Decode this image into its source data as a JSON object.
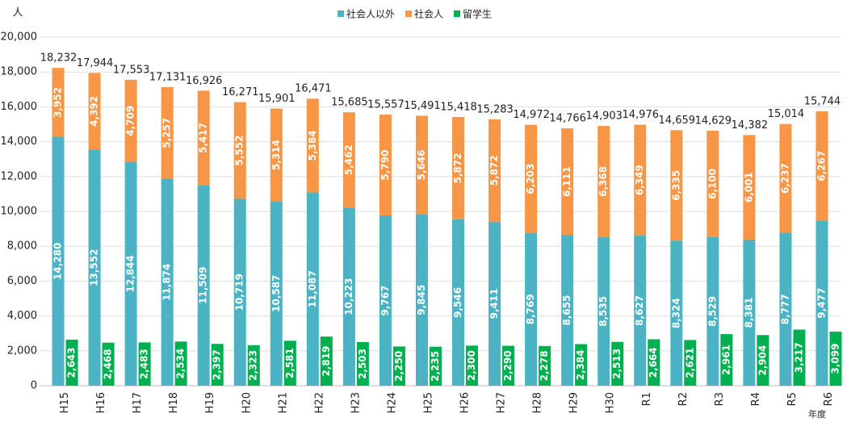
{
  "chart_data": {
    "type": "stacked_bar_with_side_bar",
    "y_unit": "人",
    "x_unit": "年度",
    "categories": [
      "H15",
      "H16",
      "H17",
      "H18",
      "H19",
      "H20",
      "H21",
      "H22",
      "H23",
      "H24",
      "H25",
      "H26",
      "H27",
      "H28",
      "H29",
      "H30",
      "R1",
      "R2",
      "R3",
      "R4",
      "R5",
      "R6"
    ],
    "series": [
      {
        "name": "社会人以外",
        "color": "#4bb3c4",
        "stack": true,
        "values": [
          14280,
          13552,
          12844,
          11874,
          11509,
          10719,
          10587,
          11087,
          10223,
          9767,
          9845,
          9546,
          9411,
          8769,
          8655,
          8535,
          8627,
          8324,
          8529,
          8381,
          8777,
          9477
        ],
        "value_labels": [
          "14,280",
          "13,552",
          "12,844",
          "11,874",
          "11,509",
          "10,719",
          "10,587",
          "11,087",
          "10,223",
          "9,767",
          "9,845",
          "9,546",
          "9,411",
          "8,769",
          "8,655",
          "8,535",
          "8,627",
          "8,324",
          "8,529",
          "8,381",
          "8,777",
          "9,477"
        ]
      },
      {
        "name": "社会人",
        "color": "#f79646",
        "stack": true,
        "values": [
          3952,
          4392,
          4709,
          5257,
          5417,
          5552,
          5314,
          5384,
          5462,
          5790,
          5646,
          5872,
          5872,
          6203,
          6111,
          6368,
          6349,
          6335,
          6100,
          6001,
          6237,
          6267
        ],
        "value_labels": [
          "3,952",
          "4,392",
          "4,709",
          "5,257",
          "5,417",
          "5,552",
          "5,314",
          "5,384",
          "5,462",
          "5,790",
          "5,646",
          "5,872",
          "5,872",
          "6,203",
          "6,111",
          "6,368",
          "6,349",
          "6,335",
          "6,100",
          "6,001",
          "6,237",
          "6,267"
        ]
      },
      {
        "name": "留学生",
        "color": "#00b050",
        "stack": false,
        "values": [
          2643,
          2468,
          2483,
          2534,
          2397,
          2323,
          2581,
          2819,
          2503,
          2250,
          2235,
          2300,
          2290,
          2278,
          2384,
          2513,
          2664,
          2621,
          2961,
          2904,
          3217,
          3099
        ],
        "value_labels": [
          "2,643",
          "2,468",
          "2,483",
          "2,534",
          "2,397",
          "2,323",
          "2,581",
          "2,819",
          "2,503",
          "2,250",
          "2,235",
          "2,300",
          "2,290",
          "2,278",
          "2,384",
          "2,513",
          "2,664",
          "2,621",
          "2,961",
          "2,904",
          "3,217",
          "3,099"
        ]
      }
    ],
    "totals": {
      "values": [
        18232,
        17944,
        17553,
        17131,
        16926,
        16271,
        15901,
        16471,
        15685,
        15557,
        15491,
        15418,
        15283,
        14972,
        14766,
        14903,
        14976,
        14659,
        14629,
        14382,
        15014,
        15744
      ],
      "value_labels": [
        "18,232",
        "17,944",
        "17,553",
        "17,131",
        "16,926",
        "16,271",
        "15,901",
        "16,471",
        "15,685",
        "15,557",
        "15,491",
        "15,418",
        "15,283",
        "14,972",
        "14,766",
        "14,903",
        "14,976",
        "14,659",
        "14,629",
        "14,382",
        "15,014",
        "15,744"
      ]
    },
    "ylim": [
      0,
      20000
    ],
    "yticks": [
      0,
      {
        "value": 2000,
        "label": "2,000"
      },
      {
        "value": 4000,
        "label": "4,000"
      },
      {
        "value": 6000,
        "label": "6,000"
      },
      {
        "value": 8000,
        "label": "8,000"
      },
      {
        "value": 10000,
        "label": "10,000"
      },
      {
        "value": 12000,
        "label": "12,000"
      },
      {
        "value": 14000,
        "label": "14,000"
      },
      {
        "value": 16000,
        "label": "16,000"
      },
      {
        "value": 18000,
        "label": "18,000"
      },
      {
        "value": 20000,
        "label": "20,000"
      }
    ],
    "grid": true,
    "legend": "top"
  }
}
